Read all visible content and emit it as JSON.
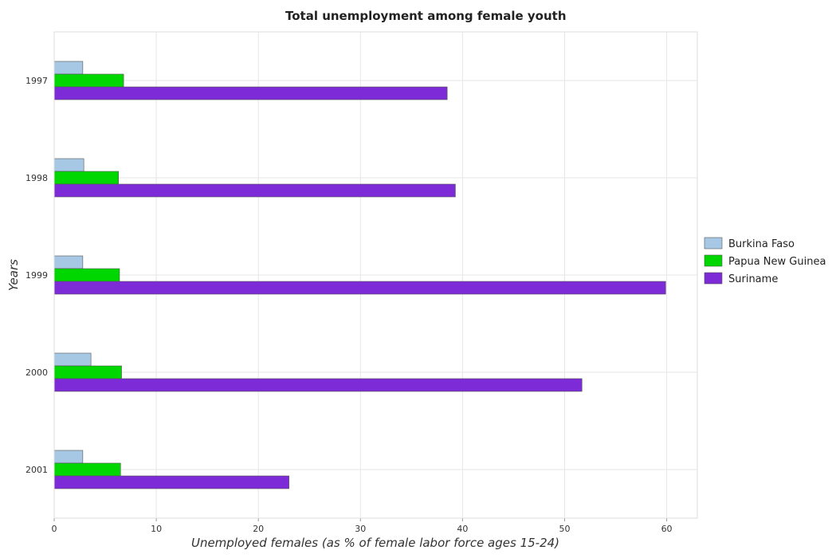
{
  "chart_data": {
    "type": "bar",
    "orientation": "horizontal",
    "title": "Total unemployment among female youth",
    "xlabel": "Unemployed females (as % of female labor force ages 15-24)",
    "ylabel": "Years",
    "categories": [
      "1997",
      "1998",
      "1999",
      "2000",
      "2001"
    ],
    "xlim": [
      0,
      63
    ],
    "xticks": [
      0,
      10,
      20,
      30,
      40,
      50,
      60
    ],
    "grid": true,
    "legend_position": "right",
    "series": [
      {
        "name": "Burkina Faso",
        "color": "#a6c8e4",
        "values": [
          2.8,
          2.9,
          2.8,
          3.6,
          2.8
        ]
      },
      {
        "name": "Papua New Guinea",
        "color": "#00d600",
        "values": [
          6.8,
          6.3,
          6.4,
          6.6,
          6.5
        ]
      },
      {
        "name": "Suriname",
        "color": "#7c2bd6",
        "values": [
          38.5,
          39.3,
          59.9,
          51.7,
          23.0
        ]
      }
    ]
  }
}
